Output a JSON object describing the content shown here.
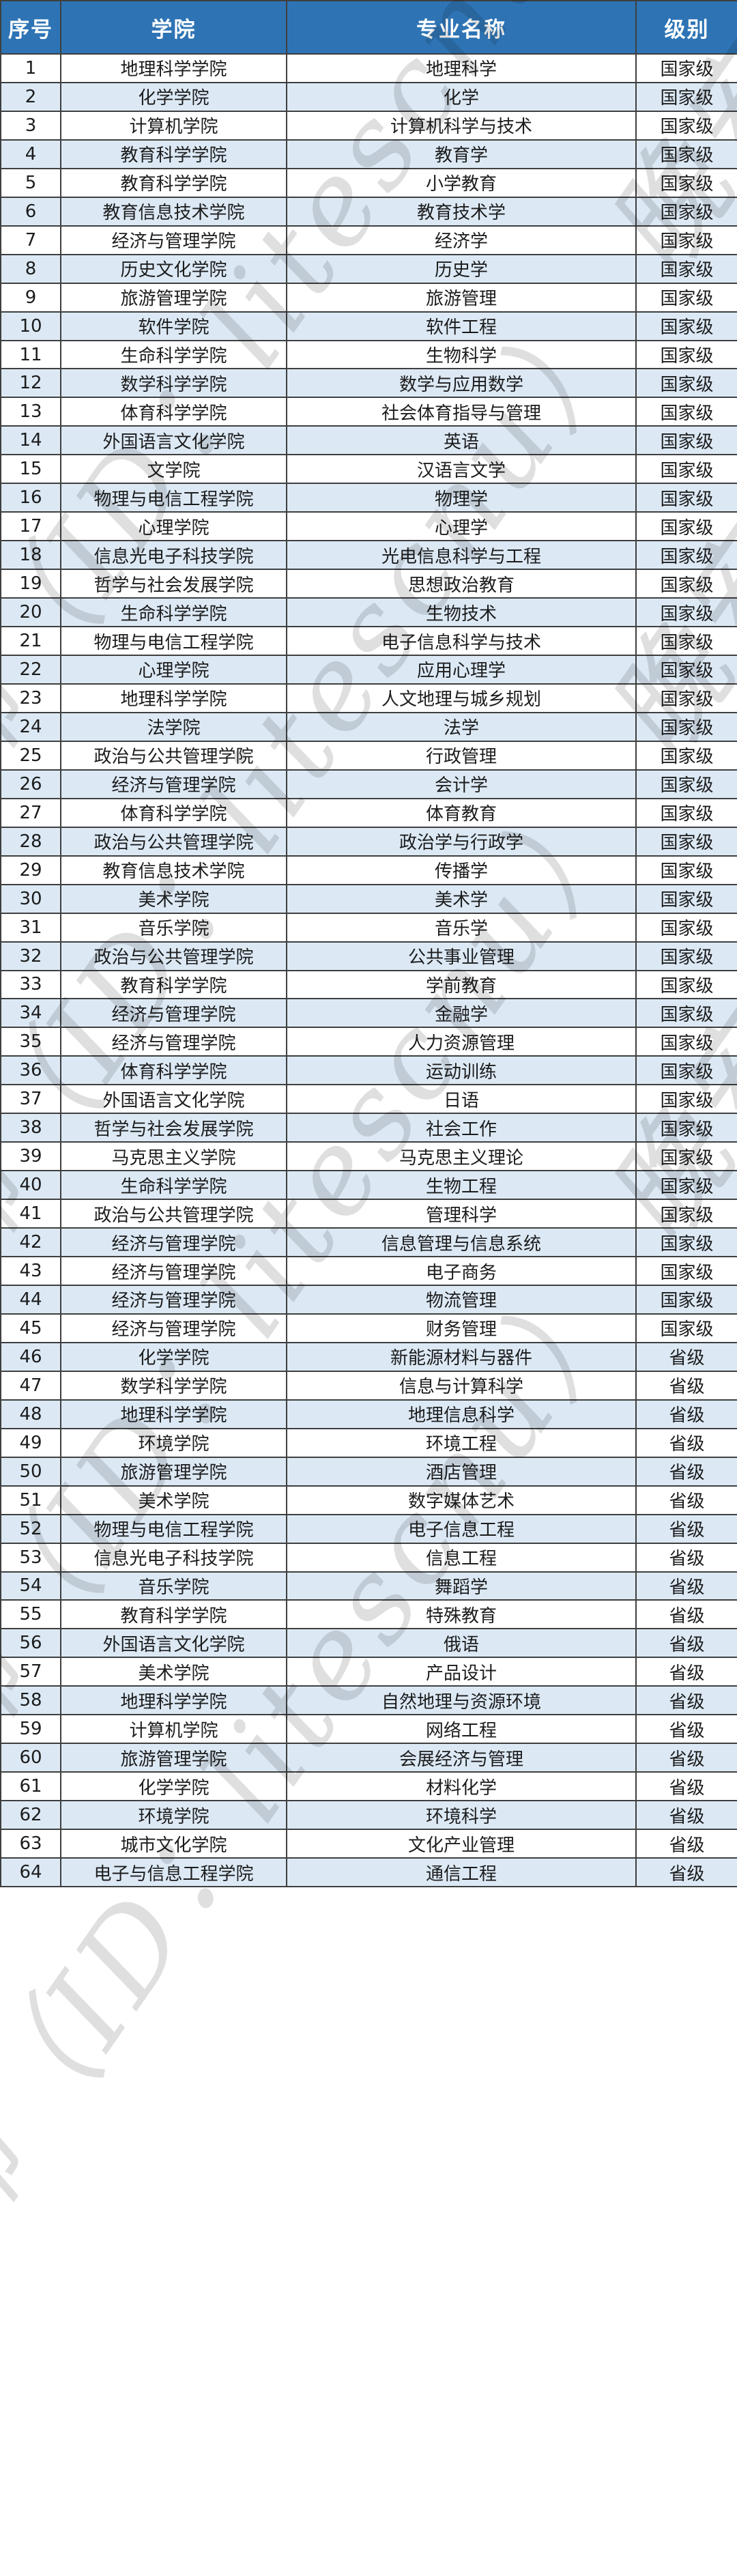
{
  "colors": {
    "header_bg": "#2E74B5",
    "header_text": "#FFFFFF",
    "row_bg": "#FFFFFF",
    "row_alt_bg": "#DCE9F5",
    "border": "#3F3F3F",
    "cell_text": "#1C1C1C",
    "watermark": "#BFBFBF"
  },
  "watermark": {
    "text": "晚安华师（ID：litescnu）"
  },
  "table": {
    "columns": [
      "序号",
      "学院",
      "专业名称",
      "级别"
    ],
    "rows": [
      [
        "1",
        "地理科学学院",
        "地理科学",
        "国家级"
      ],
      [
        "2",
        "化学学院",
        "化学",
        "国家级"
      ],
      [
        "3",
        "计算机学院",
        "计算机科学与技术",
        "国家级"
      ],
      [
        "4",
        "教育科学学院",
        "教育学",
        "国家级"
      ],
      [
        "5",
        "教育科学学院",
        "小学教育",
        "国家级"
      ],
      [
        "6",
        "教育信息技术学院",
        "教育技术学",
        "国家级"
      ],
      [
        "7",
        "经济与管理学院",
        "经济学",
        "国家级"
      ],
      [
        "8",
        "历史文化学院",
        "历史学",
        "国家级"
      ],
      [
        "9",
        "旅游管理学院",
        "旅游管理",
        "国家级"
      ],
      [
        "10",
        "软件学院",
        "软件工程",
        "国家级"
      ],
      [
        "11",
        "生命科学学院",
        "生物科学",
        "国家级"
      ],
      [
        "12",
        "数学科学学院",
        "数学与应用数学",
        "国家级"
      ],
      [
        "13",
        "体育科学学院",
        "社会体育指导与管理",
        "国家级"
      ],
      [
        "14",
        "外国语言文化学院",
        "英语",
        "国家级"
      ],
      [
        "15",
        "文学院",
        "汉语言文学",
        "国家级"
      ],
      [
        "16",
        "物理与电信工程学院",
        "物理学",
        "国家级"
      ],
      [
        "17",
        "心理学院",
        "心理学",
        "国家级"
      ],
      [
        "18",
        "信息光电子科技学院",
        "光电信息科学与工程",
        "国家级"
      ],
      [
        "19",
        "哲学与社会发展学院",
        "思想政治教育",
        "国家级"
      ],
      [
        "20",
        "生命科学学院",
        "生物技术",
        "国家级"
      ],
      [
        "21",
        "物理与电信工程学院",
        "电子信息科学与技术",
        "国家级"
      ],
      [
        "22",
        "心理学院",
        "应用心理学",
        "国家级"
      ],
      [
        "23",
        "地理科学学院",
        "人文地理与城乡规划",
        "国家级"
      ],
      [
        "24",
        "法学院",
        "法学",
        "国家级"
      ],
      [
        "25",
        "政治与公共管理学院",
        "行政管理",
        "国家级"
      ],
      [
        "26",
        "经济与管理学院",
        "会计学",
        "国家级"
      ],
      [
        "27",
        "体育科学学院",
        "体育教育",
        "国家级"
      ],
      [
        "28",
        "政治与公共管理学院",
        "政治学与行政学",
        "国家级"
      ],
      [
        "29",
        "教育信息技术学院",
        "传播学",
        "国家级"
      ],
      [
        "30",
        "美术学院",
        "美术学",
        "国家级"
      ],
      [
        "31",
        "音乐学院",
        "音乐学",
        "国家级"
      ],
      [
        "32",
        "政治与公共管理学院",
        "公共事业管理",
        "国家级"
      ],
      [
        "33",
        "教育科学学院",
        "学前教育",
        "国家级"
      ],
      [
        "34",
        "经济与管理学院",
        "金融学",
        "国家级"
      ],
      [
        "35",
        "经济与管理学院",
        "人力资源管理",
        "国家级"
      ],
      [
        "36",
        "体育科学学院",
        "运动训练",
        "国家级"
      ],
      [
        "37",
        "外国语言文化学院",
        "日语",
        "国家级"
      ],
      [
        "38",
        "哲学与社会发展学院",
        "社会工作",
        "国家级"
      ],
      [
        "39",
        "马克思主义学院",
        "马克思主义理论",
        "国家级"
      ],
      [
        "40",
        "生命科学学院",
        "生物工程",
        "国家级"
      ],
      [
        "41",
        "政治与公共管理学院",
        "管理科学",
        "国家级"
      ],
      [
        "42",
        "经济与管理学院",
        "信息管理与信息系统",
        "国家级"
      ],
      [
        "43",
        "经济与管理学院",
        "电子商务",
        "国家级"
      ],
      [
        "44",
        "经济与管理学院",
        "物流管理",
        "国家级"
      ],
      [
        "45",
        "经济与管理学院",
        "财务管理",
        "国家级"
      ],
      [
        "46",
        "化学学院",
        "新能源材料与器件",
        "省级"
      ],
      [
        "47",
        "数学科学学院",
        "信息与计算科学",
        "省级"
      ],
      [
        "48",
        "地理科学学院",
        "地理信息科学",
        "省级"
      ],
      [
        "49",
        "环境学院",
        "环境工程",
        "省级"
      ],
      [
        "50",
        "旅游管理学院",
        "酒店管理",
        "省级"
      ],
      [
        "51",
        "美术学院",
        "数字媒体艺术",
        "省级"
      ],
      [
        "52",
        "物理与电信工程学院",
        "电子信息工程",
        "省级"
      ],
      [
        "53",
        "信息光电子科技学院",
        "信息工程",
        "省级"
      ],
      [
        "54",
        "音乐学院",
        "舞蹈学",
        "省级"
      ],
      [
        "55",
        "教育科学学院",
        "特殊教育",
        "省级"
      ],
      [
        "56",
        "外国语言文化学院",
        "俄语",
        "省级"
      ],
      [
        "57",
        "美术学院",
        "产品设计",
        "省级"
      ],
      [
        "58",
        "地理科学学院",
        "自然地理与资源环境",
        "省级"
      ],
      [
        "59",
        "计算机学院",
        "网络工程",
        "省级"
      ],
      [
        "60",
        "旅游管理学院",
        "会展经济与管理",
        "省级"
      ],
      [
        "61",
        "化学学院",
        "材料化学",
        "省级"
      ],
      [
        "62",
        "环境学院",
        "环境科学",
        "省级"
      ],
      [
        "63",
        "城市文化学院",
        "文化产业管理",
        "省级"
      ],
      [
        "64",
        "电子与信息工程学院",
        "通信工程",
        "省级"
      ]
    ]
  }
}
